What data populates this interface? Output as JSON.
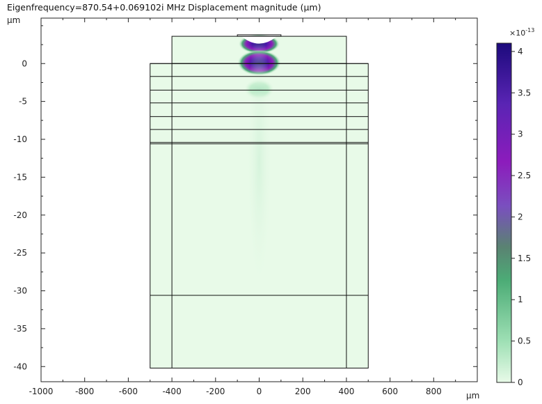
{
  "chart_data": {
    "type": "heatmap",
    "title": "Eigenfrequency=870.54+0.069102i MHz  Displacement magnitude (µm)",
    "x_unit": "µm",
    "y_unit": "µm",
    "xlim": [
      -1000,
      1000
    ],
    "ylim": [
      -42,
      6
    ],
    "x_ticks": [
      -1000,
      -800,
      -600,
      -400,
      -200,
      0,
      200,
      400,
      600,
      800
    ],
    "y_ticks": [
      0,
      -5,
      -10,
      -15,
      -20,
      -25,
      -30,
      -35,
      -40
    ],
    "x_tick_labels": [
      "-1000",
      "-800",
      "-600",
      "-400",
      "-200",
      "0",
      "200",
      "400",
      "600",
      "800"
    ],
    "y_tick_labels": [
      "0",
      "-5",
      "-10",
      "-15",
      "-20",
      "-25",
      "-30",
      "-35",
      "-40"
    ],
    "colorbar": {
      "multiplier": "×10",
      "exponent": "-13",
      "range": [
        0,
        4.1
      ],
      "ticks": [
        0,
        0.5,
        1,
        1.5,
        2,
        2.5,
        3,
        3.5,
        4
      ],
      "tick_labels": [
        "0",
        "0.5",
        "1",
        "1.5",
        "2",
        "2.5",
        "3",
        "3.5",
        "4"
      ],
      "colors": [
        "#e8fae8",
        "#9fe0b5",
        "#4cac76",
        "#5a8272",
        "#7a4fbf",
        "#8c1cbc",
        "#5a24b4",
        "#1c0a7c"
      ]
    },
    "background_color": "#e8fae8",
    "outer_block": {
      "x": [
        -500,
        500
      ],
      "y": [
        -40.2,
        0
      ]
    },
    "inner_columns_x": [
      -400,
      400
    ],
    "top_block": {
      "x": [
        -400,
        400
      ],
      "y": [
        0,
        3.6
      ]
    },
    "top_cap": {
      "x": [
        -100,
        100
      ],
      "y": [
        3.6,
        3.8
      ]
    },
    "layer_boundaries_y": [
      0,
      -1.7,
      -3.5,
      -5.2,
      -7,
      -8.7,
      -10.4,
      -10.6,
      -30.6
    ],
    "field_hotspots": [
      {
        "x": 0,
        "y": 2.6,
        "rx": 95,
        "ry": 1.3,
        "value": 3.6
      },
      {
        "x": 0,
        "y": 0.1,
        "rx": 100,
        "ry": 1.7,
        "value": 4.1
      },
      {
        "x": 0,
        "y": -3.4,
        "rx": 70,
        "ry": 1.4,
        "value": 0.75
      },
      {
        "x": 0,
        "y": -13,
        "rx": 60,
        "ry": 18,
        "value": 0.12
      }
    ]
  }
}
